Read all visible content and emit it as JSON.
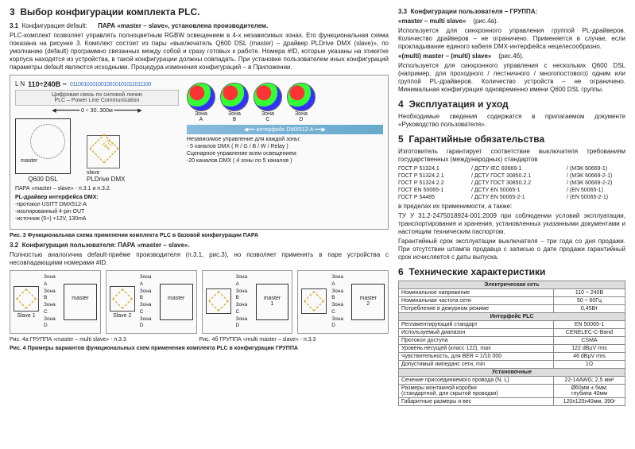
{
  "left": {
    "h3_num": "3",
    "h3_text": "Выбор конфигурации комплекта PLC.",
    "s31_num": "3.1",
    "s31_title": "Конфигурация default:",
    "s31_pair": "ПАРА «master – slave», установлена производителем.",
    "s31_p1": "PLC-комплект позволяет управлять полноцветным RGBW освещением в 4-х независимых зонах. Его функциональная схема показана на рисунке 3. Комплект состоит из пары «выключатель Q600 DSL (master) – драйвер PLDrive DMX (slave)», по умолчанию (default) программно связанных между собой и сразу готовых к работе. Номера #ID, которые указаны на этикетке корпуса находятся из устройства, в такой конфигурации должны совпадать. При установке пользователем иных конфигураций параметры default являются исходными. Процедура изменения конфигураций – в Приложении.",
    "diag": {
      "LN": "L\nN",
      "volt": "110÷240В ~",
      "bits": "01100101010010010101011011100",
      "plc_text": "Цифровая связь по силовой линии\nPLC – Power Line Communication",
      "dist": "0 ÷ 30..300м",
      "master_word": "master",
      "q600": "Q600 DSL",
      "slave_word": "slave",
      "pldrive": "PLDrive DMX",
      "dmx_label": "PLC\nDMX",
      "pl_driver_title": "PL-драйвер интерфейса DMX:",
      "pl_driver_lines": "-протокол USITT DMX512-A\n-изолированный 4-pin OUT\n-источник (5+) +12V, 130mA",
      "zone_labels": [
        "Зона\nA",
        "Зона\nB",
        "Зона\nC",
        "Зона\nD"
      ],
      "iface_bar": "интерфейс DMX512-A",
      "right_title": "Независимое управление для каждой зоны:",
      "right_l1": "- 5 каналов DMX ( R / G / B / W / Relay )",
      "right_l2": "Сценарное управление всем освещением:",
      "right_l3": "-20 каналов DMX ( 4 зоны по 5 каналов )"
    },
    "pair_ref": "ПАРА «master – slave» - п.3.1 и п.3.2.",
    "fig3": "Рис. 3   Функциональная схема применения комплекта PLC в базовой конфигурации ПАРА",
    "s32_num": "3.2",
    "s32_title": "Конфигурация пользователя:   ПАРА «master – slave».",
    "s32_p1": "Полностью аналогична default-приёме производителя (п.3.1, рис.3), но позволяет применять в паре устройства с несовпадающими номерами #ID.",
    "groups": [
      {
        "slave": "Slave 1",
        "master": "master",
        "zones": [
          "Зона A",
          "Зона B",
          "Зона C",
          "Зона D"
        ],
        "cap": "Рис. 4а        ГРУППА «master – multi slave» - п.3.3"
      },
      {
        "slave": "Slave 2",
        "master": "master",
        "zones": [
          "Зона A",
          "Зона B",
          "Зона C",
          "Зона D"
        ],
        "cap": ""
      },
      {
        "slave": "",
        "master": "master\n1",
        "zones": [
          "Зона A",
          "Зона B",
          "Зона C",
          "Зона D"
        ],
        "cap": "Рис. 4б        ГРУППА «multi master – slave» - п.3.3"
      },
      {
        "slave": "",
        "master": "master\n2",
        "zones": [
          "Зона A",
          "Зона B",
          "Зона C",
          "Зона D"
        ],
        "cap": ""
      }
    ],
    "fig4": "Рис. 4        Примеры вариантов функциональных схем применения комплекта PLC в конфигурации ГРУППА"
  },
  "right": {
    "s33_num": "3.3",
    "s33_title": "Конфигурации пользователя – ГРУППА:",
    "g1_title": "«master – multi slave»",
    "g1_ref": "(рис.4а).",
    "g1_text": "Используется для синхронного управления группой PL-драйверов. Количество драйверов – не ограничено. Применяется в случае, если прокладывание единого кабеля DMX-интерфейса нецелесообразно.",
    "g2_title": "«(multi) master – (multi) slave»",
    "g2_ref": "(рис.4б).",
    "g2_text": "Используется для синхронного управления с нескольких Q600 DSL (например, для проходного / лестничного / многопостового) одним или группой PL-драйверов. Количество устройств – не ограничено. Минимальная конфигурация одновременно имени Q600 DSL группы.",
    "h4_num": "4",
    "h4_text": "Эксплуатация и уход",
    "h4_p": "Необходимые сведения содержатся в прилагаемом документе «Руководство пользователя».",
    "h5_num": "5",
    "h5_text": "Гарантийные обязательства",
    "h5_p1": "Изготовитель гарантирует соответствие выключателя требованиям государственных (международных) стандартов",
    "standards": [
      [
        "ГОСТ Р 51324.1",
        "/ ДСТУ IEC 60669-1",
        "/ (МЭК 60669-1)"
      ],
      [
        "ГОСТ Р 51324.2.1",
        "/ ДСТУ ГОСТ 30850.2.1",
        "/ (МЭК 60669-2-1)"
      ],
      [
        "ГОСТ Р 51324.2.2",
        "/ ДСТУ ГОСТ 30850.2.2",
        "/ (МЭК 60669-2-2)"
      ],
      [
        "ГОСТ EN 50065-1",
        "/ ДСТУ EN 50065-1",
        "/ (EN 50065-1)"
      ],
      [
        "ГОСТ Р 54485",
        "/ ДСТУ EN 50065-2-1",
        "/ (EN 50065-2-1)"
      ]
    ],
    "h5_p2": "в пределах их применимости, а также:",
    "h5_p3": "ТУ У 31.2-2475018924-001:2009 при соблюдении условий эксплуатации, транспортирования и хранения, установленных указанными документами и настоящим техническим паспортом.",
    "h5_p4": "Гарантийный срок эксплуатации выключателя – три года со дня продажи. При отсутствии штампа продавца с записью о дате продажи гарантийный срок исчисляется с даты выпуска.",
    "h6_num": "6",
    "h6_text": "Технические характеристики",
    "tbl_secs": [
      "Электрическая сеть",
      "Интерфейс PLC",
      "Установочные"
    ],
    "tbl_rows": [
      [
        "Номинальное напряжение",
        "110 ÷ 240В"
      ],
      [
        "Номинальная частота сети",
        "50 ÷ 60Гц"
      ],
      [
        "Потребление в дежурном режиме",
        "0,45Вт"
      ],
      [
        "Регламентирующий стандарт",
        "EN 50065-1"
      ],
      [
        "Используемый диапазон",
        "CENELEC-C-Band"
      ],
      [
        "Протокол доступа",
        "CSMA"
      ],
      [
        "Уровень несущей (класс 122), max",
        "122 dBµV rms"
      ],
      [
        "Чувствительность, для BER = 1/10 000",
        "46 dBµV rms"
      ],
      [
        "Допустимый импеданс сети, min",
        "1Ω"
      ],
      [
        "Сечение присоединяемого провода (N, L)",
        "22-14AWG; 2,5 мм²"
      ],
      [
        "Размеры монтажной коробки\n(стандартной, для скрытой проводки)",
        "Ø60мм ± 5мм;\nглубина 40мм"
      ],
      [
        "Габаритные размеры и вес",
        "120x120x40мм, 390г"
      ]
    ]
  }
}
